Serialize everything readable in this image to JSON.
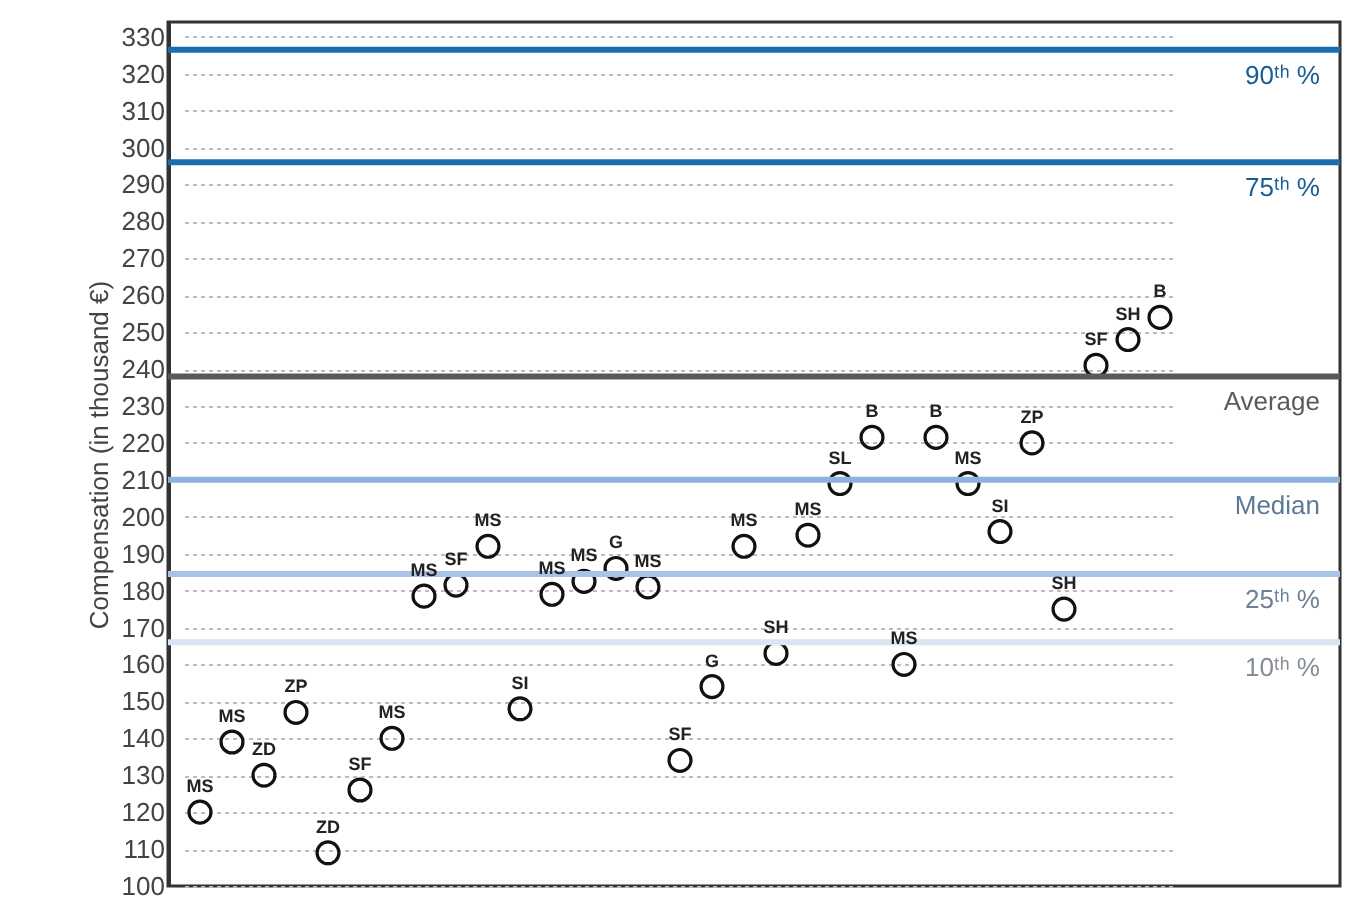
{
  "chart_data": {
    "type": "scatter",
    "ylabel": "Compensation (in thousand €)",
    "categories": [
      null,
      null,
      null,
      null,
      null,
      null,
      null,
      null,
      null,
      null,
      null,
      null,
      null,
      null,
      null,
      null,
      null,
      null,
      null,
      null,
      null,
      null,
      null,
      null,
      null,
      null,
      null,
      null,
      null,
      null,
      null
    ],
    "values": [
      120,
      139,
      130,
      147,
      109,
      126,
      140,
      178.5,
      181.5,
      192,
      148,
      179,
      182.5,
      186,
      181,
      134,
      154,
      192,
      163,
      195,
      209,
      221.5,
      160,
      221.5,
      209,
      196,
      220,
      175,
      241,
      248,
      254
    ],
    "value_labels": [
      "MS",
      "MS",
      "ZD",
      "ZP",
      "ZD",
      "SF",
      "MS",
      "MS",
      "SF",
      "MS",
      "SI",
      "MS",
      "MS",
      "G",
      "MS",
      "SF",
      "G",
      "MS",
      "SH",
      "MS",
      "SL",
      "B",
      "MS",
      "B",
      "MS",
      "SI",
      "ZP",
      "SH",
      "SF",
      "SH",
      "B"
    ],
    "color": "#111111",
    "marker": "circle",
    "ylim": [
      100,
      334
    ],
    "yticks": [
      100,
      110,
      120,
      130,
      140,
      150,
      160,
      170,
      180,
      190,
      200,
      210,
      220,
      230,
      240,
      250,
      260,
      270,
      280,
      290,
      300,
      310,
      320,
      330
    ],
    "grid": "y",
    "tick_labels": "y",
    "ref_lines": [
      {
        "axis": "y",
        "value": 326.5,
        "label": "90ᵗʰ %",
        "color": "#1a6eaf"
      },
      {
        "axis": "y",
        "value": 296,
        "label": "75ᵗʰ %",
        "color": "#1a6eaf"
      },
      {
        "axis": "y",
        "value": 238,
        "label": "Average",
        "color": "#5a5a5a"
      },
      {
        "axis": "y",
        "value": 210,
        "label": "Median",
        "color": "#8db2dd"
      },
      {
        "axis": "y",
        "value": 184.5,
        "label": "25ᵗʰ %",
        "color": "#a8c3e6"
      },
      {
        "axis": "y",
        "value": 166,
        "label": "10ᵗʰ %",
        "color": "#d9e5f2"
      }
    ]
  }
}
